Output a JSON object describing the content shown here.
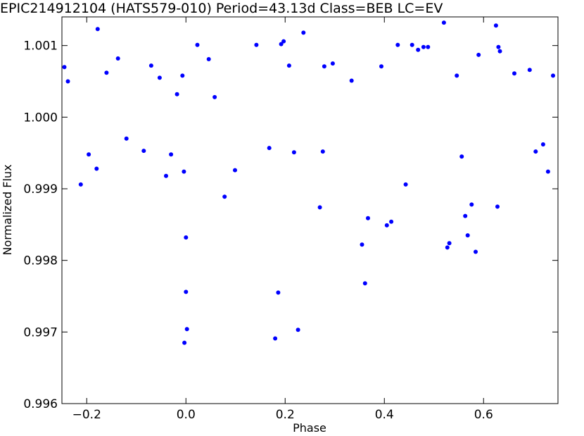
{
  "chart_data": {
    "type": "scatter",
    "title": "EPIC214912104 (HATS579-010)  Period=43.13d  Class=BEB  LC=EV",
    "xlabel": "Phase",
    "ylabel": "Normalized Flux",
    "xlim": [
      -0.25,
      0.75
    ],
    "ylim": [
      0.996,
      1.0014
    ],
    "x_ticks": [
      -0.2,
      0.0,
      0.2,
      0.4,
      0.6
    ],
    "x_tick_labels": [
      "−0.2",
      "0.0",
      "0.2",
      "0.4",
      "0.6"
    ],
    "y_ticks": [
      0.996,
      0.997,
      0.998,
      0.999,
      1.0,
      1.001
    ],
    "y_tick_labels": [
      "0.996",
      "0.997",
      "0.998",
      "0.999",
      "1.000",
      "1.001"
    ],
    "grid": false,
    "legend": "none",
    "marker_color": "#0000ff",
    "series": [
      {
        "points": [
          [
            -0.245,
            1.0007
          ],
          [
            -0.238,
            1.0005
          ],
          [
            -0.212,
            0.99906
          ],
          [
            -0.196,
            0.99948
          ],
          [
            -0.18,
            0.99928
          ],
          [
            -0.178,
            1.00123
          ],
          [
            -0.16,
            1.00062
          ],
          [
            -0.137,
            1.00082
          ],
          [
            -0.12,
            0.9997
          ],
          [
            -0.085,
            0.99953
          ],
          [
            -0.07,
            1.00072
          ],
          [
            -0.053,
            1.00055
          ],
          [
            -0.04,
            0.99918
          ],
          [
            -0.03,
            0.99948
          ],
          [
            -0.018,
            1.00032
          ],
          [
            -0.007,
            1.00058
          ],
          [
            0.0,
            0.99832
          ],
          [
            0.0,
            0.99756
          ],
          [
            0.002,
            0.99704
          ],
          [
            -0.003,
            0.99685
          ],
          [
            -0.004,
            0.99924
          ],
          [
            0.023,
            1.00101
          ],
          [
            0.046,
            1.00081
          ],
          [
            0.058,
            1.00028
          ],
          [
            0.078,
            0.99889
          ],
          [
            0.099,
            0.99926
          ],
          [
            0.142,
            1.00101
          ],
          [
            0.168,
            0.99957
          ],
          [
            0.18,
            0.99691
          ],
          [
            0.186,
            0.99755
          ],
          [
            0.192,
            1.00102
          ],
          [
            0.197,
            1.00106
          ],
          [
            0.208,
            1.00072
          ],
          [
            0.218,
            0.99951
          ],
          [
            0.226,
            0.99703
          ],
          [
            0.237,
            1.00118
          ],
          [
            0.27,
            0.99874
          ],
          [
            0.276,
            0.99952
          ],
          [
            0.279,
            1.00071
          ],
          [
            0.296,
            1.00075
          ],
          [
            0.334,
            1.00051
          ],
          [
            0.355,
            0.99822
          ],
          [
            0.361,
            0.99768
          ],
          [
            0.367,
            0.99859
          ],
          [
            0.394,
            1.00071
          ],
          [
            0.405,
            0.99849
          ],
          [
            0.414,
            0.99854
          ],
          [
            0.427,
            1.00101
          ],
          [
            0.443,
            0.99906
          ],
          [
            0.456,
            1.00101
          ],
          [
            0.468,
            1.00094
          ],
          [
            0.479,
            1.00098
          ],
          [
            0.488,
            1.00098
          ],
          [
            0.52,
            1.00132
          ],
          [
            0.527,
            0.99818
          ],
          [
            0.531,
            0.99824
          ],
          [
            0.546,
            1.00058
          ],
          [
            0.556,
            0.99945
          ],
          [
            0.563,
            0.99862
          ],
          [
            0.568,
            0.99835
          ],
          [
            0.576,
            0.99878
          ],
          [
            0.584,
            0.99812
          ],
          [
            0.59,
            1.00087
          ],
          [
            0.625,
            1.00128
          ],
          [
            0.628,
            0.99875
          ],
          [
            0.63,
            1.00098
          ],
          [
            0.633,
            1.00092
          ],
          [
            0.662,
            1.00061
          ],
          [
            0.693,
            1.00066
          ],
          [
            0.705,
            0.99952
          ],
          [
            0.72,
            0.99962
          ],
          [
            0.73,
            0.99924
          ],
          [
            0.74,
            1.00058
          ]
        ]
      }
    ]
  }
}
